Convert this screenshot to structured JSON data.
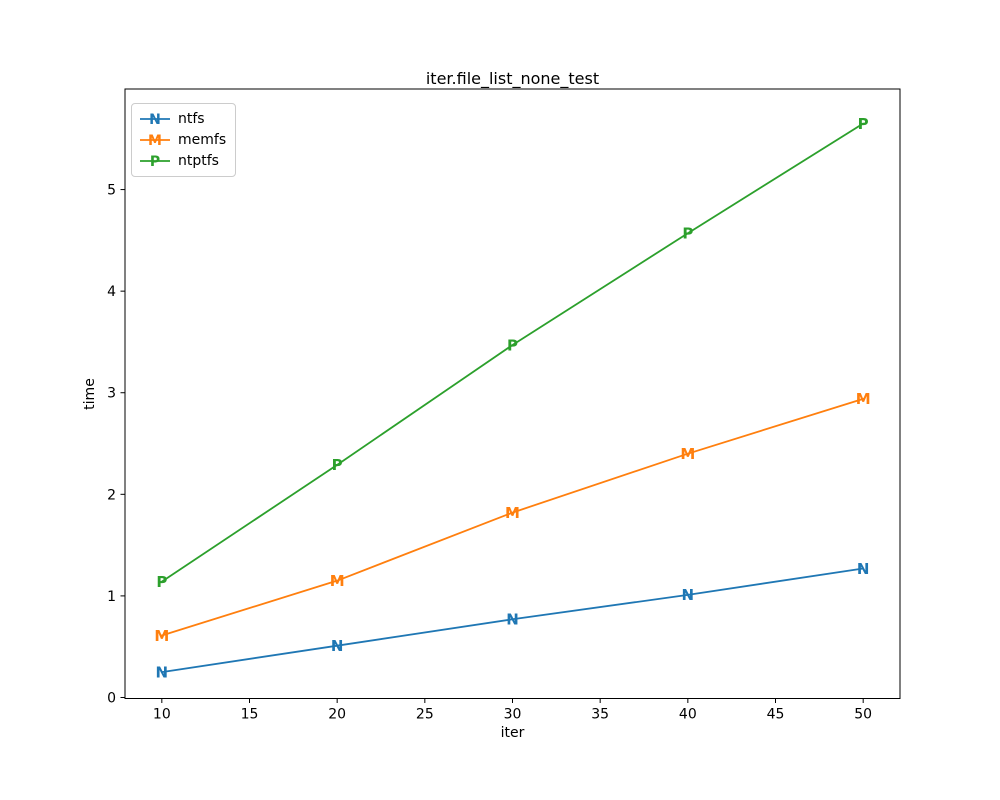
{
  "figure": {
    "background": "#ffffff",
    "axes_edge_color": "#000000",
    "text_color": "#000000"
  },
  "chart_data": {
    "type": "line",
    "title": "iter.file_list_none_test",
    "xlabel": "iter",
    "ylabel": "time",
    "x": [
      10,
      20,
      30,
      40,
      50
    ],
    "series": [
      {
        "name": "ntfs",
        "color": "#1f77b4",
        "marker": "N",
        "values": [
          0.25,
          0.51,
          0.77,
          1.01,
          1.27
        ]
      },
      {
        "name": "memfs",
        "color": "#ff7f0e",
        "marker": "M",
        "values": [
          0.61,
          1.15,
          1.82,
          2.4,
          2.94
        ]
      },
      {
        "name": "ntptfs",
        "color": "#2ca02c",
        "marker": "P",
        "values": [
          1.14,
          2.29,
          3.47,
          4.57,
          5.65
        ]
      }
    ],
    "xticks": [
      10,
      15,
      20,
      25,
      30,
      35,
      40,
      45,
      50
    ],
    "yticks": [
      0,
      1,
      2,
      3,
      4,
      5
    ],
    "xlim": [
      7.9,
      52.1
    ],
    "ylim": [
      -0.01,
      5.99
    ],
    "grid": false,
    "legend_position": "upper left"
  }
}
